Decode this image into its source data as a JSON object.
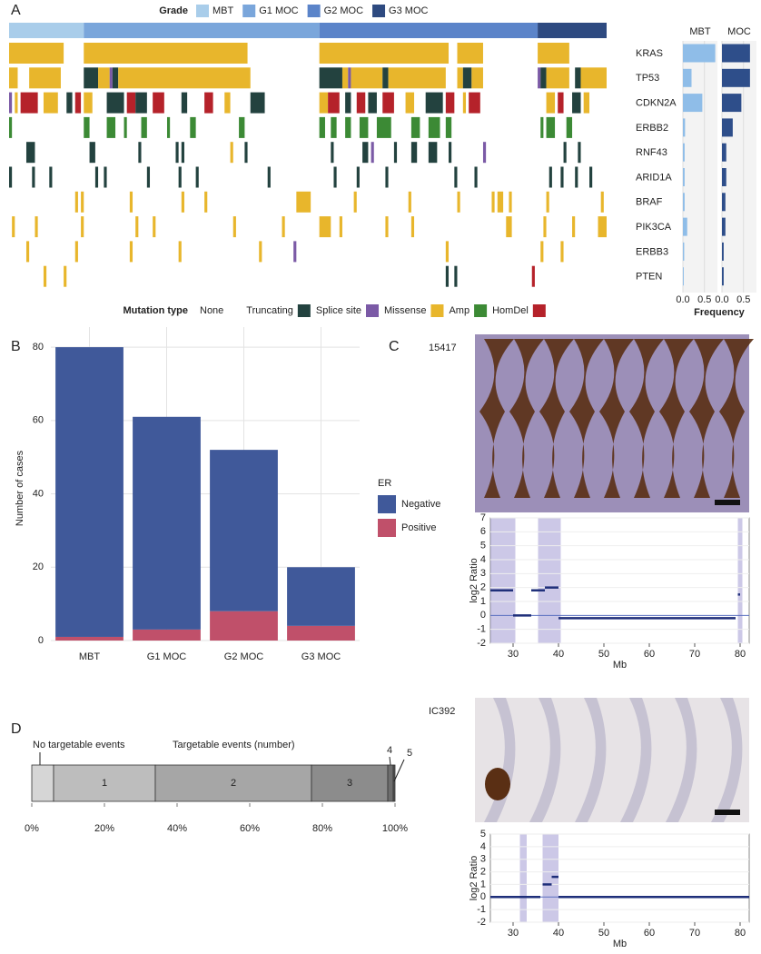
{
  "panel_labels": [
    "A",
    "B",
    "C",
    "D"
  ],
  "chart_data": [
    {
      "type": "oncoprint",
      "grade": {
        "title": "Grade",
        "categories": [
          "MBT",
          "G1 MOC",
          "G2 MOC",
          "G3 MOC"
        ],
        "colors": [
          "#a9cdea",
          "#7aa6db",
          "#5b84c9",
          "#2e4a80"
        ],
        "values": [
          26,
          82,
          76,
          24
        ]
      },
      "genes": [
        "KRAS",
        "TP53",
        "CDKN2A",
        "ERBB2",
        "RNF43",
        "ARID1A",
        "BRAF",
        "PIK3CA",
        "ERBB3",
        "PTEN"
      ],
      "mutation_legend": {
        "title": "Mutation type",
        "categories": [
          "None",
          "Truncating",
          "Splice site",
          "Missense",
          "Amp",
          "HomDel"
        ],
        "colors": [
          "#ffffff",
          "#23423f",
          "#7b5aa6",
          "#e8b62c",
          "#3c8a35",
          "#b5222a"
        ]
      },
      "tracks": [
        [
          [
            0,
            19,
            3
          ],
          [
            26,
            57,
            3
          ],
          [
            108,
            45,
            3
          ],
          [
            156,
            9,
            3
          ],
          [
            184,
            11,
            3
          ]
        ],
        [
          [
            0,
            3,
            3
          ],
          [
            7,
            11,
            3
          ],
          [
            26,
            5,
            1
          ],
          [
            31,
            4,
            3
          ],
          [
            35,
            1,
            2
          ],
          [
            36,
            2,
            1
          ],
          [
            38,
            46,
            3
          ],
          [
            108,
            8,
            1
          ],
          [
            116,
            2,
            3
          ],
          [
            118,
            1,
            2
          ],
          [
            119,
            11,
            3
          ],
          [
            130,
            2,
            1
          ],
          [
            132,
            20,
            3
          ],
          [
            156,
            2,
            3
          ],
          [
            158,
            3,
            1
          ],
          [
            161,
            4,
            3
          ],
          [
            184,
            1,
            2
          ],
          [
            185,
            2,
            1
          ],
          [
            187,
            8,
            3
          ],
          [
            197,
            2,
            1
          ],
          [
            199,
            9,
            3
          ]
        ],
        [
          [
            0,
            1,
            2
          ],
          [
            2,
            1,
            3
          ],
          [
            4,
            6,
            5
          ],
          [
            12,
            5,
            3
          ],
          [
            20,
            2,
            1
          ],
          [
            23,
            2,
            5
          ],
          [
            26,
            3,
            3
          ],
          [
            34,
            6,
            1
          ],
          [
            41,
            3,
            5
          ],
          [
            44,
            4,
            1
          ],
          [
            50,
            4,
            5
          ],
          [
            60,
            2,
            1
          ],
          [
            68,
            3,
            5
          ],
          [
            75,
            2,
            3
          ],
          [
            84,
            5,
            1
          ],
          [
            108,
            3,
            3
          ],
          [
            111,
            4,
            5
          ],
          [
            117,
            2,
            1
          ],
          [
            121,
            3,
            5
          ],
          [
            125,
            3,
            1
          ],
          [
            130,
            4,
            5
          ],
          [
            138,
            3,
            3
          ],
          [
            145,
            6,
            1
          ],
          [
            152,
            3,
            5
          ],
          [
            158,
            1,
            3
          ],
          [
            160,
            4,
            5
          ],
          [
            187,
            3,
            3
          ],
          [
            191,
            2,
            5
          ],
          [
            196,
            3,
            1
          ],
          [
            200,
            2,
            3
          ]
        ],
        [
          [
            0,
            1,
            4
          ],
          [
            26,
            2,
            4
          ],
          [
            34,
            3,
            4
          ],
          [
            40,
            1,
            4
          ],
          [
            46,
            2,
            4
          ],
          [
            55,
            1,
            4
          ],
          [
            63,
            2,
            4
          ],
          [
            80,
            2,
            4
          ],
          [
            108,
            2,
            4
          ],
          [
            112,
            2,
            4
          ],
          [
            117,
            2,
            4
          ],
          [
            122,
            3,
            4
          ],
          [
            128,
            5,
            4
          ],
          [
            140,
            3,
            4
          ],
          [
            146,
            4,
            4
          ],
          [
            152,
            2,
            4
          ],
          [
            185,
            1,
            4
          ],
          [
            187,
            3,
            4
          ],
          [
            194,
            2,
            4
          ]
        ],
        [
          [
            6,
            3,
            1
          ],
          [
            28,
            2,
            1
          ],
          [
            45,
            1,
            1
          ],
          [
            58,
            1,
            1
          ],
          [
            60,
            1,
            1
          ],
          [
            77,
            1,
            3
          ],
          [
            82,
            1,
            1
          ],
          [
            112,
            1,
            1
          ],
          [
            123,
            2,
            1
          ],
          [
            126,
            1,
            2
          ],
          [
            134,
            1,
            1
          ],
          [
            140,
            2,
            1
          ],
          [
            146,
            3,
            1
          ],
          [
            153,
            1,
            1
          ],
          [
            165,
            1,
            2
          ],
          [
            193,
            1,
            1
          ],
          [
            198,
            1,
            1
          ]
        ],
        [
          [
            0,
            1,
            1
          ],
          [
            8,
            1,
            1
          ],
          [
            14,
            1,
            1
          ],
          [
            30,
            1,
            1
          ],
          [
            33,
            1,
            1
          ],
          [
            48,
            1,
            1
          ],
          [
            59,
            1,
            1
          ],
          [
            65,
            1,
            1
          ],
          [
            90,
            1,
            1
          ],
          [
            113,
            1,
            1
          ],
          [
            121,
            1,
            1
          ],
          [
            131,
            1,
            1
          ],
          [
            155,
            1,
            1
          ],
          [
            162,
            1,
            1
          ],
          [
            188,
            1,
            1
          ],
          [
            192,
            1,
            1
          ],
          [
            197,
            1,
            1
          ],
          [
            202,
            1,
            1
          ]
        ],
        [
          [
            23,
            1,
            3
          ],
          [
            25,
            1,
            3
          ],
          [
            42,
            1,
            3
          ],
          [
            60,
            1,
            3
          ],
          [
            68,
            1,
            3
          ],
          [
            100,
            5,
            3
          ],
          [
            120,
            1,
            3
          ],
          [
            139,
            1,
            3
          ],
          [
            156,
            1,
            3
          ],
          [
            168,
            1,
            3
          ],
          [
            170,
            2,
            3
          ],
          [
            174,
            1,
            3
          ],
          [
            187,
            1,
            3
          ],
          [
            206,
            1,
            3
          ]
        ],
        [
          [
            1,
            1,
            3
          ],
          [
            9,
            1,
            3
          ],
          [
            25,
            1,
            3
          ],
          [
            44,
            1,
            3
          ],
          [
            50,
            1,
            3
          ],
          [
            78,
            1,
            3
          ],
          [
            95,
            1,
            3
          ],
          [
            108,
            4,
            3
          ],
          [
            115,
            1,
            3
          ],
          [
            131,
            1,
            3
          ],
          [
            140,
            1,
            3
          ],
          [
            173,
            2,
            3
          ],
          [
            186,
            1,
            3
          ],
          [
            196,
            1,
            3
          ],
          [
            205,
            3,
            3
          ]
        ],
        [
          [
            6,
            1,
            3
          ],
          [
            23,
            1,
            3
          ],
          [
            42,
            1,
            3
          ],
          [
            59,
            1,
            3
          ],
          [
            87,
            1,
            3
          ],
          [
            99,
            1,
            2
          ],
          [
            152,
            1,
            3
          ],
          [
            185,
            1,
            3
          ],
          [
            192,
            1,
            3
          ]
        ],
        [
          [
            12,
            1,
            3
          ],
          [
            19,
            1,
            3
          ],
          [
            152,
            1,
            1
          ],
          [
            155,
            1,
            1
          ],
          [
            182,
            1,
            5
          ]
        ]
      ]
    },
    {
      "type": "frequency",
      "xlabel": "Frequency",
      "xlim": [
        0,
        0.8
      ],
      "xticks": [
        {
          "value": 0,
          "label": "0.0"
        },
        {
          "value": 0.5,
          "label": "0.5"
        }
      ],
      "series": [
        {
          "name": "MBT",
          "color": "#8fbde8",
          "values": [
            0.75,
            0.2,
            0.45,
            0.05,
            0.04,
            0.04,
            0.04,
            0.1,
            0.03,
            0.02
          ]
        },
        {
          "name": "MOC",
          "color": "#2e4e8a",
          "values": [
            0.65,
            0.65,
            0.45,
            0.25,
            0.1,
            0.1,
            0.08,
            0.08,
            0.04,
            0.04
          ]
        }
      ]
    },
    {
      "type": "stacked_bar",
      "ylabel": "Number of cases",
      "legend_title": "ER",
      "categories": [
        "MBT",
        "G1 MOC",
        "G2 MOC",
        "G3 MOC"
      ],
      "series": [
        {
          "name": "Negative",
          "color": "#40599a",
          "values": [
            79,
            58,
            44,
            16
          ]
        },
        {
          "name": "Positive",
          "color": "#c0506a",
          "values": [
            1,
            3,
            8,
            4
          ]
        }
      ],
      "ylim": [
        0,
        83
      ],
      "yticks": [
        0,
        20,
        40,
        60,
        80
      ],
      "grid": true
    },
    {
      "type": "copy_number",
      "sample": "15417",
      "ylabel": "log2 Ratio",
      "xlabel": "Mb",
      "xlim": [
        25,
        82
      ],
      "ylim": [
        -2,
        7
      ],
      "xticks": [
        30,
        40,
        50,
        60,
        70,
        80
      ],
      "yticks": [
        -2,
        -1,
        0,
        1,
        2,
        3,
        4,
        5,
        6,
        7
      ],
      "highlights": [
        [
          25,
          30.5
        ],
        [
          35.5,
          40.5
        ],
        [
          79.5,
          80.5
        ]
      ],
      "segments": [
        [
          25,
          30,
          1.8
        ],
        [
          30,
          34,
          0
        ],
        [
          34,
          37,
          1.8
        ],
        [
          37,
          40,
          2
        ],
        [
          40,
          79,
          -0.2
        ],
        [
          79.5,
          80,
          1.5
        ]
      ]
    },
    {
      "type": "copy_number",
      "sample": "IC392",
      "ylabel": "log2 Ratio",
      "xlabel": "Mb",
      "xlim": [
        25,
        82
      ],
      "ylim": [
        -2,
        5
      ],
      "xticks": [
        30,
        40,
        50,
        60,
        70,
        80
      ],
      "yticks": [
        -2,
        -1,
        0,
        1,
        2,
        3,
        4,
        5
      ],
      "highlights": [
        [
          31.5,
          33
        ],
        [
          36.5,
          40
        ]
      ],
      "segments": [
        [
          25,
          36,
          0
        ],
        [
          36.5,
          38.5,
          1
        ],
        [
          38.5,
          40,
          1.6
        ],
        [
          40,
          82,
          0
        ]
      ]
    },
    {
      "type": "stacked_hbar",
      "annotations": [
        "No targetable events",
        "Targetable events (number)"
      ],
      "categories": [
        null,
        "1",
        "2",
        "3",
        "4",
        "5"
      ],
      "values": [
        6,
        28,
        43,
        21,
        1.5,
        0.5
      ],
      "colors": [
        "#d6d6d6",
        "#bdbdbd",
        "#a6a6a6",
        "#8c8c8c",
        "#6e6e6e",
        "#555555"
      ],
      "xlim": [
        0,
        100
      ],
      "xticks": [
        {
          "value": 0,
          "label": "0%"
        },
        {
          "value": 20,
          "label": "20%"
        },
        {
          "value": 40,
          "label": "40%"
        },
        {
          "value": 60,
          "label": "60%"
        },
        {
          "value": 80,
          "label": "80%"
        },
        {
          "value": 100,
          "label": "100%"
        }
      ]
    }
  ]
}
